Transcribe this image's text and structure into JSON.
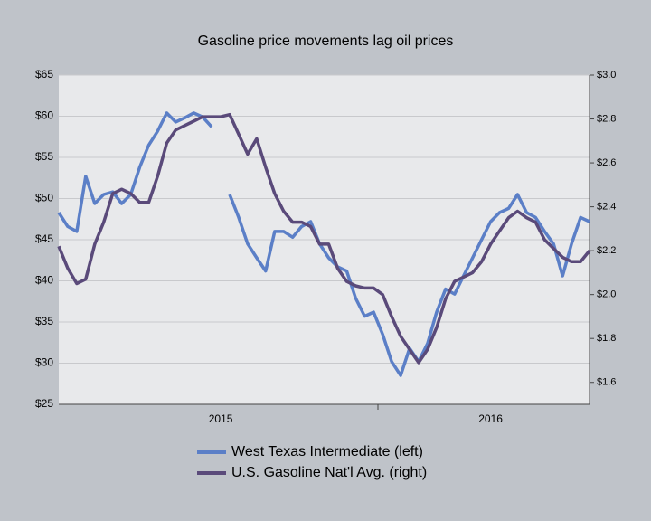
{
  "chart_data": {
    "type": "line",
    "title": "Gasoline price movements lag oil prices",
    "categories": [
      null,
      null,
      null,
      null,
      null,
      null,
      null,
      null,
      null,
      null,
      null,
      null,
      null,
      null,
      null,
      null,
      null,
      null,
      "2015",
      null,
      null,
      null,
      null,
      null,
      null,
      null,
      null,
      null,
      null,
      null,
      null,
      null,
      null,
      null,
      null,
      null,
      null,
      null,
      null,
      null,
      null,
      null,
      null,
      null,
      null,
      null,
      null,
      null,
      "2016",
      null,
      null,
      null,
      null,
      null,
      null,
      null,
      null,
      null,
      null,
      null
    ],
    "series": [
      {
        "name": "West Texas Intermediate (left)",
        "color": "#5b7fc7",
        "axis": "y",
        "values": [
          48.3,
          46.6,
          46,
          52.7,
          49.4,
          50.5,
          50.8,
          49.4,
          50.5,
          53.8,
          56.5,
          58.2,
          60.4,
          59.3,
          59.8,
          60.4,
          59.9,
          58.7,
          null,
          50.5,
          47.7,
          44.5,
          42.8,
          41.2,
          46,
          46,
          45.3,
          46.6,
          47.2,
          44.5,
          42.8,
          41.7,
          41.2,
          37.9,
          35.7,
          36.2,
          33.5,
          30.2,
          28.5,
          31.8,
          30.2,
          32.4,
          36.2,
          39,
          38.4,
          40.6,
          42.8,
          45,
          47.2,
          48.3,
          48.8,
          50.5,
          48.3,
          47.7,
          46,
          44.5,
          40.6,
          44.5,
          47.7,
          47.2
        ]
      },
      {
        "name": "U.S. Gasoline Nat'l Avg. (right)",
        "color": "#5a4a7a",
        "axis": "y2",
        "values": [
          2.22,
          2.12,
          2.05,
          2.07,
          2.23,
          2.33,
          2.46,
          2.48,
          2.46,
          2.42,
          2.42,
          2.54,
          2.69,
          2.75,
          2.77,
          2.79,
          2.81,
          2.81,
          2.81,
          2.82,
          2.73,
          2.64,
          2.71,
          2.58,
          2.46,
          2.38,
          2.33,
          2.33,
          2.31,
          2.23,
          2.23,
          2.12,
          2.06,
          2.04,
          2.03,
          2.03,
          2.0,
          1.9,
          1.81,
          1.75,
          1.69,
          1.75,
          1.85,
          1.98,
          2.06,
          2.08,
          2.1,
          2.15,
          2.23,
          2.29,
          2.35,
          2.38,
          2.35,
          2.33,
          2.25,
          2.21,
          2.17,
          2.15,
          2.15,
          2.2
        ]
      }
    ],
    "ylim": [
      25,
      65
    ],
    "yticks": [
      {
        "value": 25,
        "label": "$25"
      },
      {
        "value": 30,
        "label": "$30"
      },
      {
        "value": 35,
        "label": "$35"
      },
      {
        "value": 40,
        "label": "$40"
      },
      {
        "value": 45,
        "label": "$45"
      },
      {
        "value": 50,
        "label": "$50"
      },
      {
        "value": 55,
        "label": "$55"
      },
      {
        "value": 60,
        "label": "$60"
      },
      {
        "value": 65,
        "label": "$65"
      }
    ],
    "y2lim": [
      1.5,
      3.0
    ],
    "y2ticks": [
      {
        "value": 1.6,
        "label": "$1.6"
      },
      {
        "value": 1.8,
        "label": "$1.8"
      },
      {
        "value": 2.0,
        "label": "$2.0"
      },
      {
        "value": 2.2,
        "label": "$2.2"
      },
      {
        "value": 2.4,
        "label": "$2.4"
      },
      {
        "value": 2.6,
        "label": "$2.6"
      },
      {
        "value": 2.8,
        "label": "$2.8"
      },
      {
        "value": 3.0,
        "label": "$3.0"
      }
    ],
    "grid": true
  }
}
